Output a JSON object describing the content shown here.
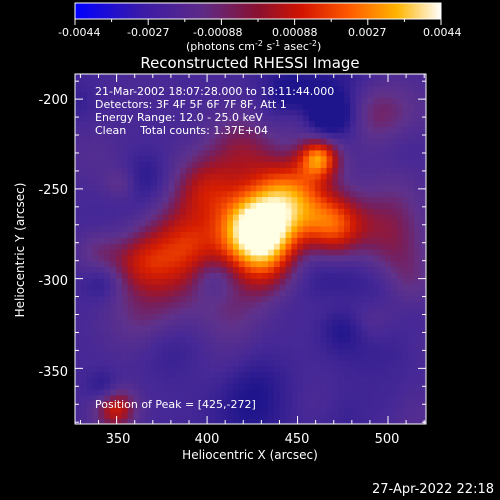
{
  "colorbar": {
    "tick_labels": [
      "-0.0044",
      "-0.0027",
      "-0.00088",
      "0.00088",
      "0.0027",
      "0.0044"
    ],
    "unit_label_main": "(photons cm",
    "unit_label_exp1": "-2",
    "unit_label_mid": " s",
    "unit_label_exp2": "-1",
    "unit_label_mid2": " asec",
    "unit_label_exp3": "-2",
    "unit_label_end": ")",
    "colormap": "blue-purple-red-orange-yellow-white"
  },
  "plot": {
    "title": "Reconstructed RHESSI Image",
    "annotations": {
      "time_range": "21-Mar-2002 18:07:28.000 to 18:11:44.000",
      "detectors": "Detectors: 3F 4F 5F 6F 7F 8F, Att 1",
      "energy": "Energy Range: 12.0 - 25.0 keV",
      "clean": "Clean    Total counts: 1.37E+04",
      "peak": "Position of Peak = [425,-272]"
    },
    "xlabel": "Heliocentric X (arcsec)",
    "ylabel": "Heliocentric Y (arcsec)",
    "x_ticks": [
      "350",
      "400",
      "450",
      "500"
    ],
    "y_ticks": [
      "-200",
      "-250",
      "-300",
      "-350"
    ]
  },
  "chart_data": {
    "type": "heatmap",
    "title": "Reconstructed RHESSI Image",
    "xlabel": "Heliocentric X (arcsec)",
    "ylabel": "Heliocentric Y (arcsec)",
    "xlim": [
      327,
      521
    ],
    "ylim": [
      -381,
      -186
    ],
    "peak": [
      425,
      -272
    ],
    "value_range": [
      -0.0044,
      0.0044
    ]
  },
  "footer": {
    "timestamp": "27-Apr-2022 22:18"
  }
}
